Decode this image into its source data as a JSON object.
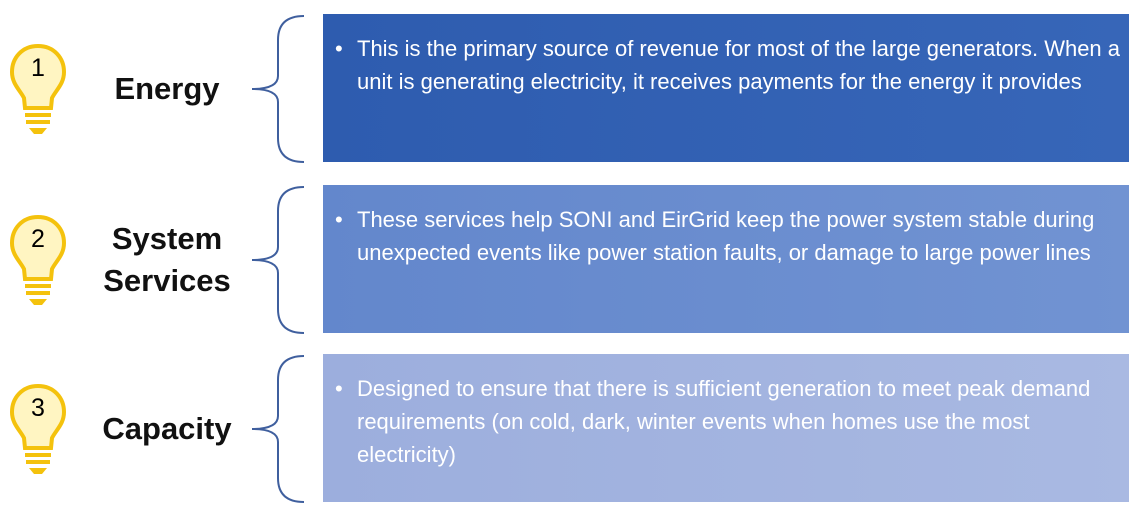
{
  "items": [
    {
      "number": "1",
      "label": "Energy",
      "text": "This is the primary source of revenue for most of the large generators. When a unit is generating electricity, it receives payments for the energy it provides"
    },
    {
      "number": "2",
      "label": "System Services",
      "text": "These services help SONI and EirGrid keep the power system stable during unexpected events like power station faults, or damage to large power lines"
    },
    {
      "number": "3",
      "label": "Capacity",
      "text": "Designed to ensure that there is sufficient generation to meet peak demand requirements (on cold, dark, winter events when homes use the most electricity)"
    }
  ]
}
